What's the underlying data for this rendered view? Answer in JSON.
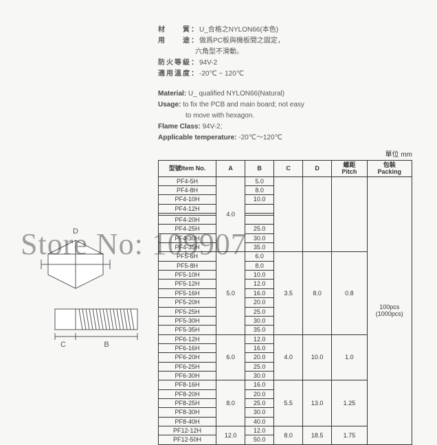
{
  "cn": {
    "material_label": "材　　質：",
    "material_val": "U_合格之NYLON66(本色)",
    "usage_label": "用　　途：",
    "usage_val1": "做爲PC板與機板間之固定，",
    "usage_val2": "六角型不滑動。",
    "flame_label": "防火等級：",
    "flame_val": "94V-2",
    "temp_label": "適用溫度：",
    "temp_val": "-20℃ ~ 120℃"
  },
  "en": {
    "material_label": "Material:",
    "material_val": " U_ qualified NYLON66(Natural)",
    "usage_label": "Usage:",
    "usage_val1": " to fix the PCB and main board; not easy",
    "usage_val2": "to move with hexagon.",
    "flame_label": "Flame Class:",
    "flame_val": " 94V-2;",
    "temp_label": "Applicable temperature:",
    "temp_val": " -20℃～120℃"
  },
  "unit": "單位 mm",
  "headers": {
    "item": "型號Item No.",
    "a": "A",
    "b": "B",
    "c": "C",
    "d": "D",
    "pitch": "螺距\nPitch",
    "packing": "包裝\nPacking"
  },
  "groups": [
    {
      "a": "4.0",
      "c": "",
      "d": "",
      "pitch": "",
      "rows": [
        {
          "item": "PF4-5H",
          "b": "5.0"
        },
        {
          "item": "PF4-8H",
          "b": "8.0"
        },
        {
          "item": "PF4-10H",
          "b": "10.0"
        },
        {
          "item": "PF4-12H",
          "b": ""
        },
        {
          "item": "",
          "b": ""
        },
        {
          "item": "PF4-20H",
          "b": ""
        },
        {
          "item": "PF4-25H",
          "b": "25.0"
        },
        {
          "item": "PF4-30H",
          "b": "30.0"
        },
        {
          "item": "PF4-35H",
          "b": "35.0"
        }
      ]
    },
    {
      "a": "5.0",
      "c": "3.5",
      "d": "8.0",
      "pitch": "0.8",
      "rows": [
        {
          "item": "PF5-6H",
          "b": "6.0"
        },
        {
          "item": "PF5-8H",
          "b": "8.0"
        },
        {
          "item": "PF5-10H",
          "b": "10.0"
        },
        {
          "item": "PF5-12H",
          "b": "12.0"
        },
        {
          "item": "PF5-16H",
          "b": "16.0"
        },
        {
          "item": "PF5-20H",
          "b": "20.0"
        },
        {
          "item": "PF5-25H",
          "b": "25.0"
        },
        {
          "item": "PF5-30H",
          "b": "30.0"
        },
        {
          "item": "PF5-35H",
          "b": "35.0"
        }
      ]
    },
    {
      "a": "6.0",
      "c": "4.0",
      "d": "10.0",
      "pitch": "1.0",
      "rows": [
        {
          "item": "PF6-12H",
          "b": "12.0"
        },
        {
          "item": "PF6-16H",
          "b": "16.0"
        },
        {
          "item": "PF6-20H",
          "b": "20.0"
        },
        {
          "item": "PF6-25H",
          "b": "25.0"
        },
        {
          "item": "PF6-30H",
          "b": "30.0"
        }
      ]
    },
    {
      "a": "8.0",
      "c": "5.5",
      "d": "13.0",
      "pitch": "1.25",
      "rows": [
        {
          "item": "PF8-16H",
          "b": "16.0"
        },
        {
          "item": "PF8-20H",
          "b": "20.0"
        },
        {
          "item": "PF8-25H",
          "b": "25.0"
        },
        {
          "item": "PF8-30H",
          "b": "30.0"
        },
        {
          "item": "PF8-40H",
          "b": "40.0"
        }
      ]
    },
    {
      "a": "12.0",
      "c": "8.0",
      "d": "18.5",
      "pitch": "1.75",
      "rows": [
        {
          "item": "PF12-12H",
          "b": "12.0"
        },
        {
          "item": "PF12-50H",
          "b": "50.0"
        }
      ]
    }
  ],
  "packing": "100pcs\n(1000pcs)",
  "watermark": "Store No: 109907",
  "diagram_labels": {
    "b": "B",
    "c": "C",
    "d": "D"
  },
  "colors": {
    "text": "#555555",
    "border": "#333333",
    "bg": "#f7f7f5"
  }
}
